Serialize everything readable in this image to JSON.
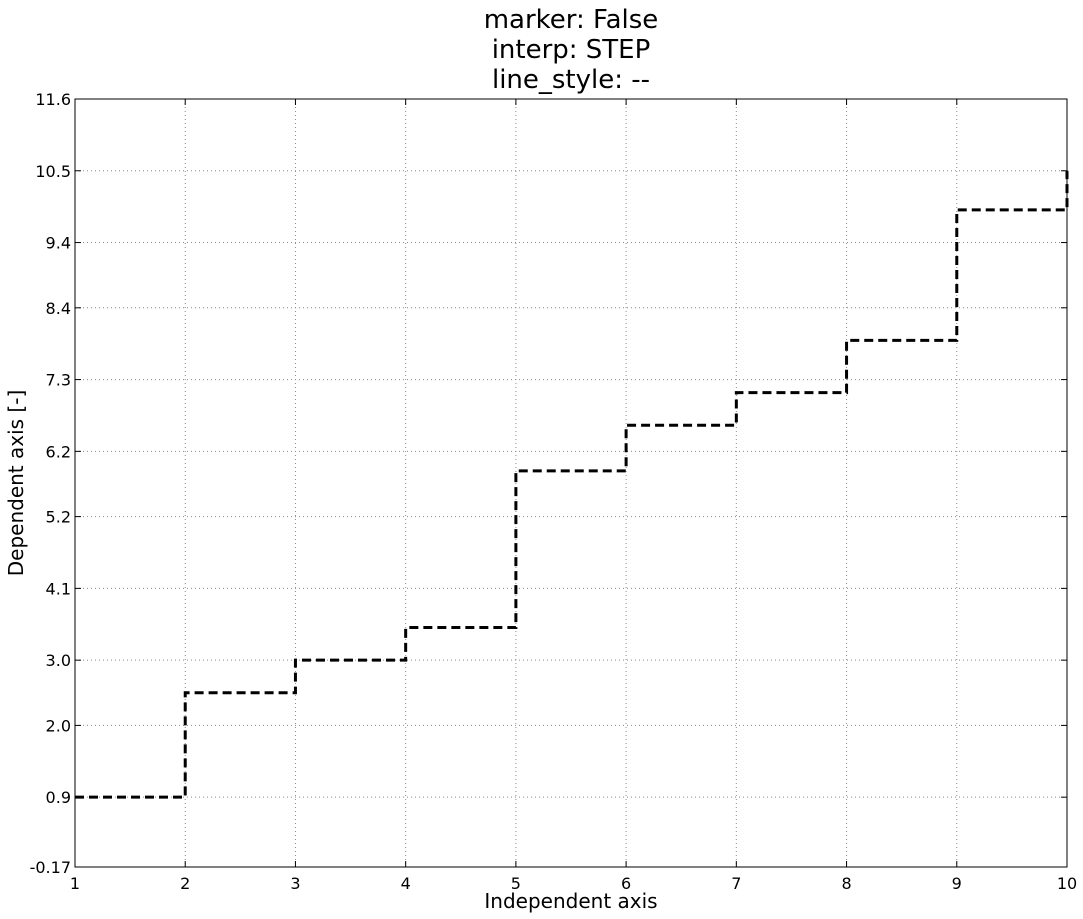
{
  "chart_data": {
    "type": "line",
    "title_lines": [
      "marker: False",
      "interp: STEP",
      "line_style: --"
    ],
    "xlabel": "Independent axis",
    "ylabel": "Dependent axis [-]",
    "xlim": [
      1,
      10
    ],
    "ylim": [
      -0.17,
      11.6
    ],
    "grid": true,
    "x_ticks": [
      1,
      2,
      3,
      4,
      5,
      6,
      7,
      8,
      9,
      10
    ],
    "x_tick_labels": [
      "1",
      "2",
      "3",
      "4",
      "5",
      "6",
      "7",
      "8",
      "9",
      "10"
    ],
    "y_ticks": [
      -0.17,
      0.9,
      2.0,
      3.0,
      4.1,
      5.2,
      6.2,
      7.3,
      8.4,
      9.4,
      10.5,
      11.6
    ],
    "y_tick_labels": [
      "-0.17",
      "0.9",
      "2.0",
      "3.0",
      "4.1",
      "5.2",
      "6.2",
      "7.3",
      "8.4",
      "9.4",
      "10.5",
      "11.6"
    ],
    "series": [
      {
        "interp": "step",
        "line_style": "--",
        "color": "#000000",
        "x": [
          1,
          2,
          3,
          4,
          5,
          6,
          7,
          8,
          9,
          10
        ],
        "y": [
          0.9,
          2.5,
          3.0,
          3.5,
          5.9,
          6.6,
          7.1,
          7.9,
          9.9,
          10.5
        ]
      }
    ]
  }
}
